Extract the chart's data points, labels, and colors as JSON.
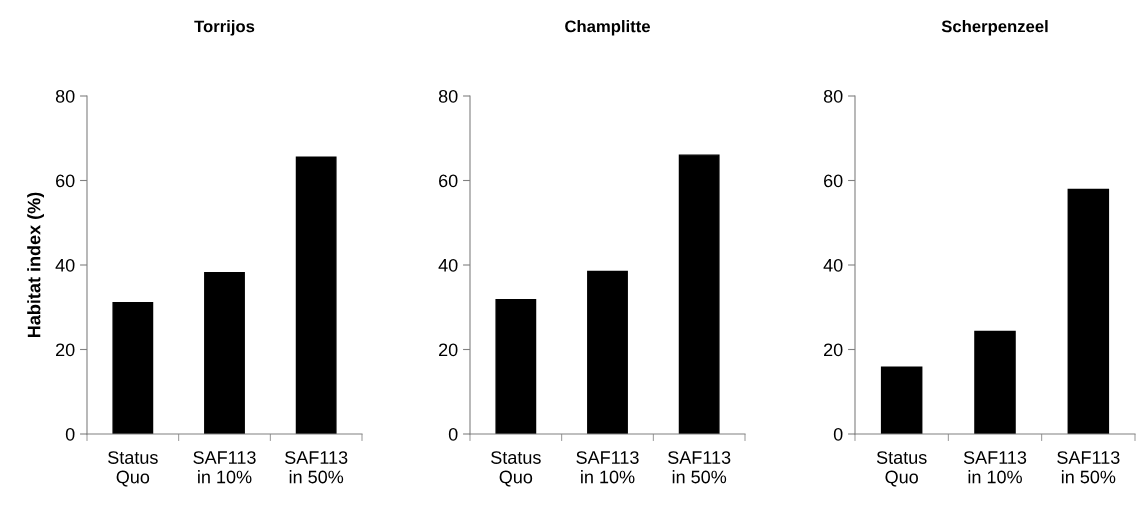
{
  "chart_data": [
    {
      "type": "bar",
      "title": "Torrijos",
      "ylabel": "Habitat index (%)",
      "categories": [
        "Status\nQuo",
        "SAF113\nin 10%",
        "SAF113\nin 50%"
      ],
      "values": [
        31.1,
        38.2,
        65.5
      ],
      "color": "#000000",
      "ylim": [
        0,
        80
      ],
      "yticks": [
        0,
        20,
        40,
        60,
        80
      ],
      "grid": false,
      "legend": false
    },
    {
      "type": "bar",
      "title": "Champlitte",
      "categories": [
        "Status\nQuo",
        "SAF113\nin 10%",
        "SAF113\nin 50%"
      ],
      "values": [
        31.8,
        38.5,
        66.0
      ],
      "color": "#000000",
      "ylim": [
        0,
        80
      ],
      "yticks": [
        0,
        20,
        40,
        60,
        80
      ],
      "grid": false,
      "legend": false
    },
    {
      "type": "bar",
      "title": "Scherpenzeel",
      "categories": [
        "Status\nQuo",
        "SAF113\nin 10%",
        "SAF113\nin 50%"
      ],
      "values": [
        15.8,
        24.3,
        57.9
      ],
      "color": "#000000",
      "ylim": [
        0,
        80
      ],
      "yticks": [
        0,
        20,
        40,
        60,
        80
      ],
      "grid": false,
      "legend": false
    }
  ]
}
